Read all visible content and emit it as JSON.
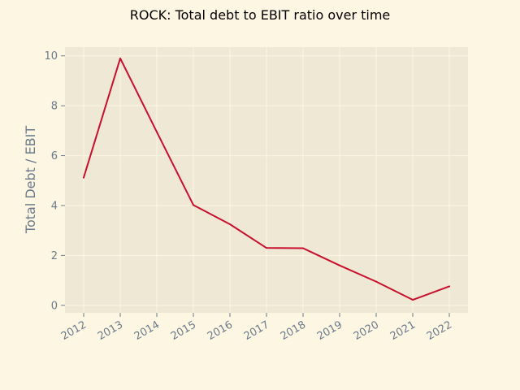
{
  "chart_data": {
    "type": "line",
    "title": "ROCK: Total debt to EBIT ratio over time",
    "xlabel": "",
    "ylabel": "Total Debt / EBIT",
    "x": [
      "2012",
      "2013",
      "2014",
      "2015",
      "2016",
      "2017",
      "2018",
      "2019",
      "2020",
      "2021",
      "2022"
    ],
    "series": [
      {
        "values": [
          5.12,
          9.9,
          6.95,
          4.02,
          3.25,
          2.3,
          2.29,
          1.6,
          0.95,
          0.22,
          0.76
        ]
      }
    ],
    "xlim": [
      "2012",
      "2022"
    ],
    "ylim": [
      -0.3,
      10.35
    ],
    "yticks": [
      0,
      2,
      4,
      6,
      8,
      10
    ],
    "grid": true,
    "colors": {
      "figure_bg": "#fdf6e3",
      "plot_bg": "#eee8d5",
      "grid": "#fdf6e3",
      "line": "#c8102e",
      "tick_text": "#6b7b8c"
    }
  }
}
